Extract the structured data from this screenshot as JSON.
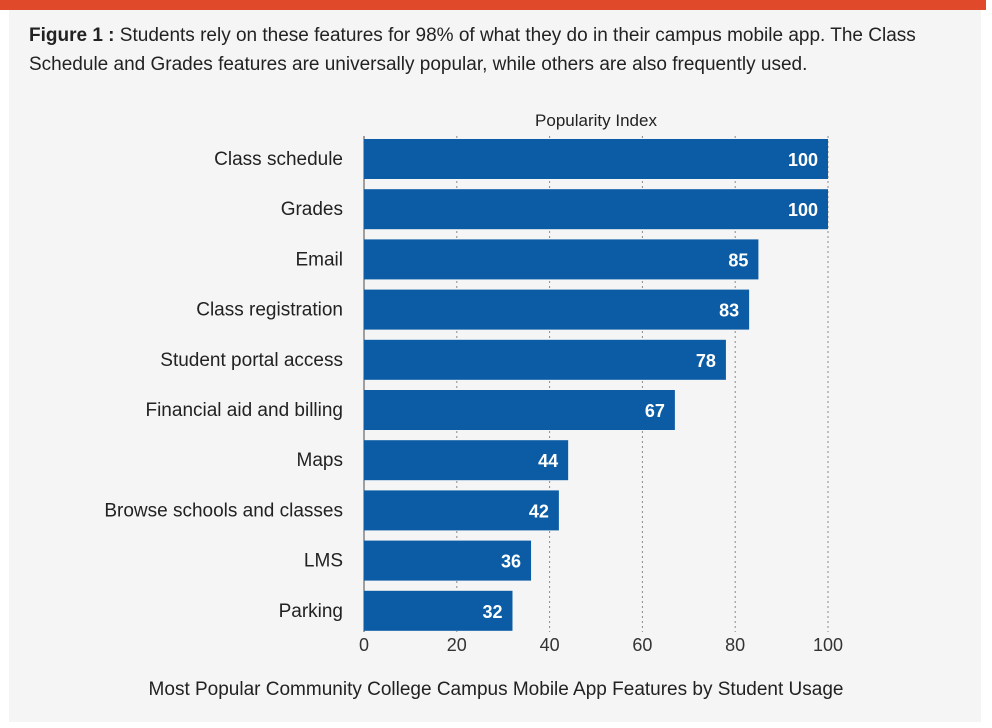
{
  "figure": {
    "label": "Figure 1 :",
    "caption": "Students rely on these features for 98% of what they do in their campus mobile app. The Class Schedule and Grades features are universally popular, while others are also frequently used."
  },
  "colors": {
    "accent_rule": "#e04a2b",
    "bar": "#0b5ca5",
    "panel_background": "#f4f5f4"
  },
  "chart_data": {
    "type": "bar",
    "orientation": "horizontal",
    "title": "Popularity Index",
    "footer": "Most Popular Community College Campus Mobile App Features by Student Usage",
    "categories": [
      "Class schedule",
      "Grades",
      "Email",
      "Class registration",
      "Student portal access",
      "Financial aid and billing",
      "Maps",
      "Browse schools and classes",
      "LMS",
      "Parking"
    ],
    "values": [
      100,
      100,
      85,
      83,
      78,
      67,
      44,
      42,
      36,
      32
    ],
    "xlim": [
      0,
      100
    ],
    "xticks": [
      0,
      20,
      40,
      60,
      80,
      100
    ],
    "grid": "vertical dashed",
    "data_labels": true
  }
}
